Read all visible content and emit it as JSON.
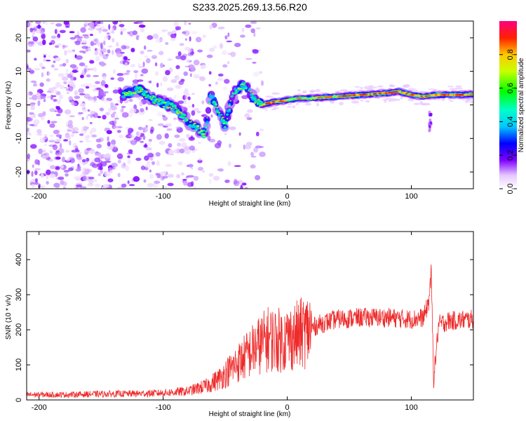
{
  "title": "S233.2025.269.13.56.R20",
  "chart_data": [
    {
      "type": "heatmap",
      "title": "S233.2025.269.13.56.R20",
      "xlabel": "Height of straight line (km)",
      "ylabel": "Frequency (Hz)",
      "xlim": [
        -210,
        150
      ],
      "ylim": [
        -25,
        25
      ],
      "xticks": [
        -200,
        -100,
        0,
        100
      ],
      "yticks": [
        -20,
        -10,
        0,
        10,
        20
      ],
      "colorbar": {
        "label": "Normalized spectral amplitude",
        "range": [
          0,
          1
        ],
        "ticks": [
          0.0,
          0.2,
          0.4,
          0.6,
          0.8
        ]
      },
      "ridge": {
        "name": "dominant frequency track",
        "x": [
          -132,
          -125,
          -118,
          -110,
          -100,
          -90,
          -80,
          -72,
          -66,
          -62,
          -55,
          -50,
          -45,
          -40,
          -35,
          -30,
          -25,
          -20,
          -15,
          -10,
          -5,
          0,
          10,
          20,
          40,
          60,
          80,
          90,
          100,
          110,
          120,
          130,
          140,
          150
        ],
        "y": [
          3,
          4,
          4.5,
          2,
          0.5,
          -1,
          -5,
          -7,
          -9,
          3,
          -2,
          -6,
          2,
          5,
          6,
          4,
          1,
          0,
          0.5,
          1,
          1,
          1.5,
          2,
          2,
          2.5,
          3,
          3.5,
          4,
          3,
          2.5,
          3,
          3,
          3,
          3.2
        ]
      }
    },
    {
      "type": "line",
      "xlabel": "Height of straight line (km)",
      "ylabel": "SNR (10 * v/v)",
      "xlim": [
        -210,
        150
      ],
      "ylim": [
        0,
        480
      ],
      "xticks": [
        -200,
        -100,
        0,
        100
      ],
      "yticks": [
        0,
        100,
        200,
        300,
        400
      ],
      "color": "#ee2a2a",
      "series": [
        {
          "name": "SNR",
          "x": [
            -210,
            -180,
            -150,
            -120,
            -100,
            -80,
            -65,
            -55,
            -45,
            -35,
            -25,
            -15,
            -5,
            5,
            15,
            25,
            40,
            60,
            80,
            100,
            110,
            114,
            116,
            118,
            122,
            130,
            150
          ],
          "y": [
            15,
            15,
            17,
            18,
            20,
            25,
            40,
            60,
            90,
            120,
            150,
            175,
            170,
            180,
            195,
            215,
            230,
            235,
            235,
            230,
            235,
            280,
            360,
            60,
            215,
            225,
            230
          ]
        }
      ]
    }
  ]
}
